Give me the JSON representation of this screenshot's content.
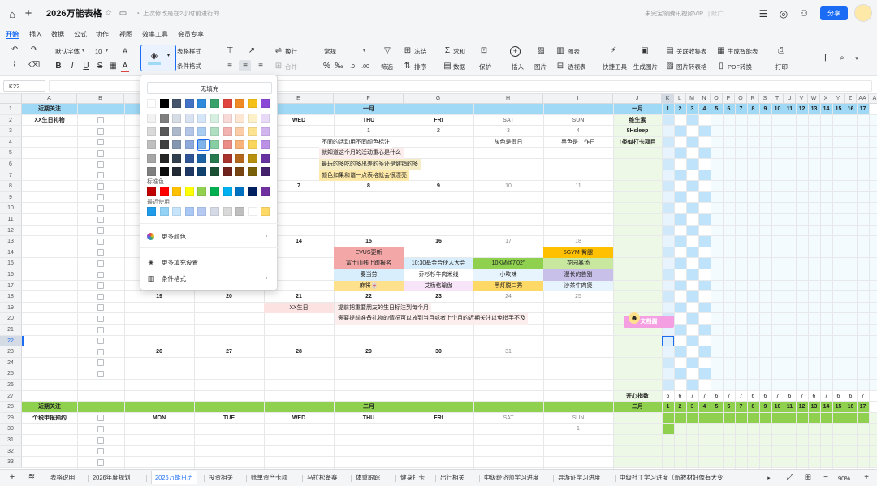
{
  "title_bar": {
    "doc_title": "2026万能表格",
    "save_status": "上次修改是在2小时前进行的",
    "user_label": "未完宝领腾讯视频VIP",
    "extra_label": "| 账广",
    "share_label": "分享"
  },
  "menu": [
    "开始",
    "插入",
    "数据",
    "公式",
    "协作",
    "视图",
    "效率工具",
    "会员专享"
  ],
  "ribbon": {
    "font_name": "默认字体",
    "font_size": "10",
    "table_style": "表格样式",
    "cond_format": "条件格式",
    "wrap": "换行",
    "merge": "合并",
    "number_format": "常规",
    "freeze": "冻结",
    "sum": "求和",
    "filter": "筛选",
    "sort": "排序",
    "data": "数据",
    "protect": "保护",
    "chart": "图表",
    "insert": "插入",
    "image": "图片",
    "pivot": "透视表",
    "quick_tools": "快捷工具",
    "gen_image": "生成图片",
    "follow_form": "关联收集表",
    "gen_smart": "生成智能表",
    "image_to_table": "图片转表格",
    "pdf_convert": "PDF转换",
    "print": "打印"
  },
  "formula_bar": {
    "cell_ref": "K22"
  },
  "columns": [
    "A",
    "B",
    "C",
    "D",
    "E",
    "F",
    "G",
    "H",
    "I",
    "J",
    "K",
    "L",
    "M",
    "N",
    "O",
    "P",
    "Q",
    "R",
    "S",
    "T",
    "U",
    "V",
    "W",
    "X",
    "Y",
    "Z",
    "AA",
    "A"
  ],
  "rows": [
    "1",
    "2",
    "3",
    "4",
    "5",
    "6",
    "7",
    "8",
    "9",
    "10",
    "11",
    "12",
    "13",
    "14",
    "15",
    "16",
    "17",
    "18",
    "19",
    "20",
    "21",
    "22",
    "23",
    "24",
    "25",
    "26",
    "27",
    "28",
    "29",
    "30",
    "31",
    "32",
    "33"
  ],
  "cells": {
    "a1": "近期关注",
    "f1": "一月",
    "j1": "一月",
    "a2": "XX生日礼物",
    "e2": "WED",
    "f2": "THU",
    "g2": "FRI",
    "h2": "SAT",
    "i2": "SUN",
    "j2": "维生素",
    "f3": "1",
    "g3": "2",
    "h3": "3",
    "i3": "4",
    "j3": "8Hsleep",
    "f4": "不同的活动用不同颜色标注",
    "h4": "灰色是假日",
    "i4": "黑色是工作日",
    "j4": "↑类似打卡项目",
    "f5": "就知道这个月的活动重心是什么",
    "f6": "最玩的多吃的多出差的多还是健销的多",
    "f7": "颜色如果和谐一点表格就会很漂亮",
    "e8": "7",
    "f8": "8",
    "g8": "9",
    "h8": "10",
    "i8": "11",
    "e13": "14",
    "f13": "15",
    "g13": "16",
    "h13": "17",
    "i13": "18",
    "f14": "EVUS更新",
    "i14": "5GYM-臀腿",
    "f15": "富士山线上跑报名",
    "g15": "10:30基金合伙人大会",
    "h15": "10KM@7'02\"",
    "i15": "花园暴汤",
    "f16": "麦当劳",
    "g16": "乔杉杉牛肉米线",
    "h16": "小吹味",
    "i16": "漫长的告别",
    "f17": "麻将🀄",
    "g17": "艾杨格瑜伽",
    "h17": "黑灯脱口秀",
    "i17": "沙茶牛肉煲",
    "c18": "19",
    "d18": "20",
    "e18": "21",
    "f18": "22",
    "g18": "23",
    "h18": "24",
    "i18": "25",
    "e19": "XX生日",
    "f19": "提前把重要朋友的生日标注到每个月",
    "f20": "需要提前准备礼物的情况可以放到当月或者上个月的近期关注以免措手不及",
    "c23": "26",
    "d23": "27",
    "e23": "28",
    "f23": "29",
    "g23": "30",
    "h23": "31",
    "j27": "开心指数",
    "a28": "近期关注",
    "f28": "二月",
    "j28": "二月",
    "a29": "个税申报预约",
    "c29": "MON",
    "d29": "TUE",
    "e29": "WED",
    "f29": "THU",
    "g29": "FRI",
    "h29": "SAT",
    "i29": "SUN",
    "i30": "1",
    "sticker": "文档酱"
  },
  "day_numbers": [
    "1",
    "2",
    "3",
    "4",
    "5",
    "6",
    "7",
    "8",
    "9",
    "10",
    "11",
    "12",
    "13",
    "14",
    "15",
    "16",
    "17"
  ],
  "happy_index": [
    "6",
    "6",
    "7",
    "7",
    "6",
    "7",
    "7",
    "6",
    "6",
    "7",
    "6",
    "7",
    "6",
    "7",
    "6",
    "6",
    "7"
  ],
  "palette": {
    "no_fill": "无填充",
    "standard": "标准色",
    "recent": "最近使用",
    "more_colors": "更多颜色",
    "more_fill": "更多填充设置",
    "cond_format": "条件格式",
    "theme_rows": [
      [
        "#ffffff",
        "#000000",
        "#44546a",
        "#4472c4",
        "#2e8bdb",
        "#37a26b",
        "#e0453d",
        "#f08a24",
        "#f5c118",
        "#8b48d6"
      ],
      [
        "#f2f2f2",
        "#7f7f7f",
        "#d6dce4",
        "#d9e2f3",
        "#d4e6f8",
        "#d7efe0",
        "#f8d9d7",
        "#fde6d2",
        "#fdf1c8",
        "#e8daf7"
      ],
      [
        "#d9d9d9",
        "#595959",
        "#adb9ca",
        "#b4c6e7",
        "#a9cdf1",
        "#afdec1",
        "#f2b3ae",
        "#fbcca5",
        "#fbe391",
        "#d1b5ef"
      ],
      [
        "#bfbfbf",
        "#3f3f3f",
        "#8496b0",
        "#8eaadb",
        "#7eb4ea",
        "#87cea3",
        "#eb8d86",
        "#f9b278",
        "#f9d55b",
        "#ba91e7"
      ],
      [
        "#a6a6a6",
        "#262626",
        "#323f4f",
        "#2f5597",
        "#1b63a5",
        "#27794f",
        "#a8332c",
        "#b3671b",
        "#b7900f",
        "#6532a0"
      ],
      [
        "#7f7f7f",
        "#0d0d0d",
        "#222a35",
        "#1f3864",
        "#12426e",
        "#1a5135",
        "#70221d",
        "#774412",
        "#7a600a",
        "#43216b"
      ]
    ],
    "standard_colors": [
      "#c00000",
      "#ff0000",
      "#ffc000",
      "#ffff00",
      "#92d050",
      "#00b050",
      "#00b0f0",
      "#0070c0",
      "#002060",
      "#7030a0"
    ],
    "recent_colors": [
      "#1e9be9",
      "#92d3f5",
      "#c6e4fb",
      "#a9c8f5",
      "#b5c9f3",
      "#d4dae6",
      "#d9d9d9",
      "#bfbfbf",
      "#ffffff",
      "#ffd966"
    ]
  },
  "sheet_tabs": [
    "表格说明",
    "2026年度规划",
    "2026万能日历",
    "投资相关",
    "账单资产卡项",
    "马拉松备赛",
    "体重跟踪",
    "健身打卡",
    "出行相关",
    "中级经济师学习进度",
    "导游证学习进度",
    "中级社工学习进度（新教材好像有大变"
  ],
  "zoom": "90%",
  "colors": {
    "accent": "#1a6cf5",
    "blue_band": "#9fd9f6",
    "green_band": "#8fd14f",
    "tick_blue": "#bfe3fb"
  }
}
